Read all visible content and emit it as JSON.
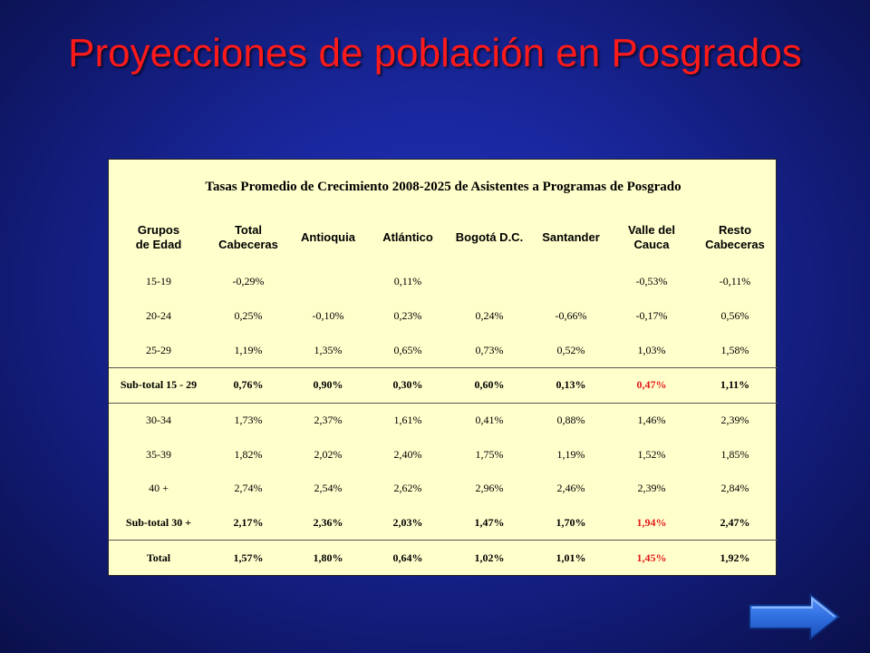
{
  "title": "Proyecciones de población en Posgrados",
  "table": {
    "caption": "Tasas Promedio de Crecimiento 2008-2025 de Asistentes a Programas de Posgrado",
    "headers": {
      "grupos_line1": "Grupos",
      "grupos_line2": "de Edad",
      "total_line1": "Total",
      "total_line2": "Cabeceras",
      "antioquia": "Antioquia",
      "atlantico": "Atlántico",
      "bogota": "Bogotá D.C.",
      "santander": "Santander",
      "valle": "Valle del Cauca",
      "resto": "Resto Cabeceras"
    },
    "rows": [
      {
        "group": "15-19",
        "total": "-0,29%",
        "antioquia": "",
        "atlantico": "0,11%",
        "bogota": "",
        "santander": "",
        "valle": "-0,53%",
        "resto": "-0,11%"
      },
      {
        "group": "20-24",
        "total": "0,25%",
        "antioquia": "-0,10%",
        "atlantico": "0,23%",
        "bogota": "0,24%",
        "santander": "-0,66%",
        "valle": "-0,17%",
        "resto": "0,56%"
      },
      {
        "group": "25-29",
        "total": "1,19%",
        "antioquia": "1,35%",
        "atlantico": "0,65%",
        "bogota": "0,73%",
        "santander": "0,52%",
        "valle": "1,03%",
        "resto": "1,58%"
      },
      {
        "group": "Sub-total 15 - 29",
        "total": "0,76%",
        "antioquia": "0,90%",
        "atlantico": "0,30%",
        "bogota": "0,60%",
        "santander": "0,13%",
        "valle": "0,47%",
        "resto": "1,11%"
      },
      {
        "group": "30-34",
        "total": "1,73%",
        "antioquia": "2,37%",
        "atlantico": "1,61%",
        "bogota": "0,41%",
        "santander": "0,88%",
        "valle": "1,46%",
        "resto": "2,39%"
      },
      {
        "group": "35-39",
        "total": "1,82%",
        "antioquia": "2,02%",
        "atlantico": "2,40%",
        "bogota": "1,75%",
        "santander": "1,19%",
        "valle": "1,52%",
        "resto": "1,85%"
      },
      {
        "group": "40 +",
        "total": "2,74%",
        "antioquia": "2,54%",
        "atlantico": "2,62%",
        "bogota": "2,96%",
        "santander": "2,46%",
        "valle": "2,39%",
        "resto": "2,84%"
      },
      {
        "group": "Sub-total 30 +",
        "total": "2,17%",
        "antioquia": "2,36%",
        "atlantico": "2,03%",
        "bogota": "1,47%",
        "santander": "1,70%",
        "valle": "1,94%",
        "resto": "2,47%"
      },
      {
        "group": "Total",
        "total": "1,57%",
        "antioquia": "1,80%",
        "atlantico": "0,64%",
        "bogota": "1,02%",
        "santander": "1,01%",
        "valle": "1,45%",
        "resto": "1,92%"
      }
    ]
  },
  "colors": {
    "title": "#ff1a1a",
    "table_bg": "#ffffcc",
    "highlight": "#e41a1a",
    "background": "#1a28a0",
    "next_arrow": "#2f6fe0"
  },
  "nav": {
    "next_icon": "arrow-right-icon"
  }
}
